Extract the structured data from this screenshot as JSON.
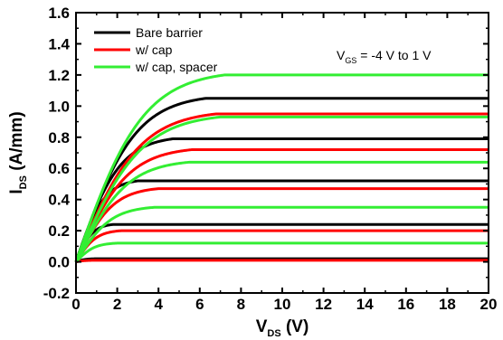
{
  "chart_data": {
    "type": "line",
    "xlabel": {
      "main": "V",
      "sub": "DS",
      "unit": " (V)"
    },
    "ylabel": {
      "main": "I",
      "sub": "DS",
      "unit": " (A/mm)"
    },
    "xlim": [
      0,
      20
    ],
    "ylim": [
      -0.2,
      1.6
    ],
    "xticks": [
      "0",
      "2",
      "4",
      "6",
      "8",
      "10",
      "12",
      "14",
      "16",
      "18",
      "20"
    ],
    "yticks": [
      "-0.2",
      "0.0",
      "0.2",
      "0.4",
      "0.6",
      "0.8",
      "1.0",
      "1.2",
      "1.4",
      "1.6"
    ],
    "grid": false,
    "legend_position": "top-left",
    "annotation": {
      "main": "V",
      "sub": "GS",
      "rest": " = -4 V to 1 V"
    },
    "series": [
      {
        "name": "Bare barrier",
        "color": "#000000",
        "curves": [
          {
            "vsat": 1.0,
            "isat": 0.02
          },
          {
            "vsat": 1.8,
            "isat": 0.24
          },
          {
            "vsat": 3.0,
            "isat": 0.52
          },
          {
            "vsat": 4.7,
            "isat": 0.79
          },
          {
            "vsat": 6.3,
            "isat": 1.05
          }
        ]
      },
      {
        "name": "w/ cap",
        "color": "#ff0000",
        "curves": [
          {
            "vsat": 1.0,
            "isat": 0.01
          },
          {
            "vsat": 2.2,
            "isat": 0.2
          },
          {
            "vsat": 4.0,
            "isat": 0.47
          },
          {
            "vsat": 5.6,
            "isat": 0.72
          },
          {
            "vsat": 6.8,
            "isat": 0.95
          }
        ]
      },
      {
        "name": "w/ cap, spacer",
        "color": "#33ee33",
        "curves": [
          {
            "vsat": 2.0,
            "isat": 0.12
          },
          {
            "vsat": 3.8,
            "isat": 0.35
          },
          {
            "vsat": 5.5,
            "isat": 0.64
          },
          {
            "vsat": 7.0,
            "isat": 0.93
          },
          {
            "vsat": 7.2,
            "isat": 1.2
          }
        ]
      }
    ]
  }
}
